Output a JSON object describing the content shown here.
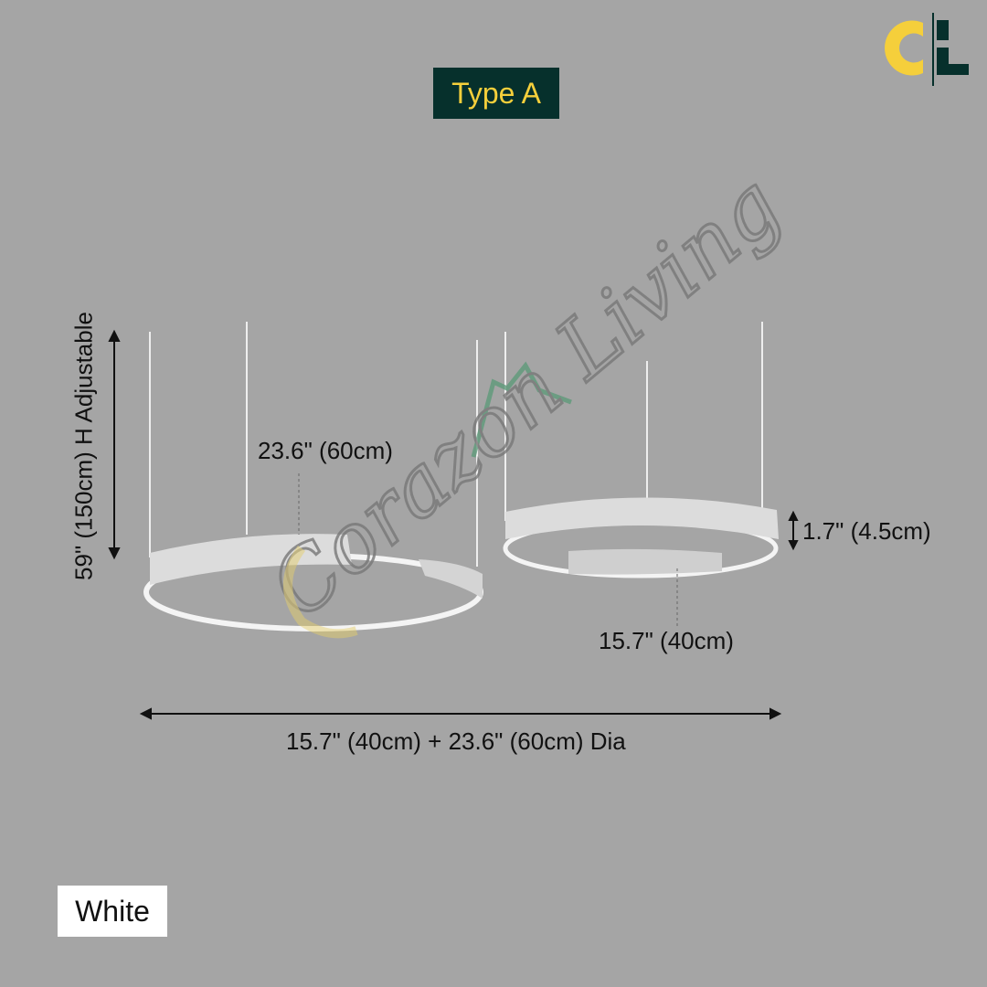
{
  "brand": {
    "logo_text": "Coràzon Living",
    "watermark_text": "Corazon Living",
    "colors": {
      "yellow": "#f5cf3b",
      "dark": "#06302c"
    }
  },
  "type_badge": "Type A",
  "dimensions": {
    "height": "59\" (150cm) H Adjustable",
    "large_ring": "23.6\" (60cm)",
    "ring_thickness": "1.7\" (4.5cm)",
    "small_ring": "15.7\" (40cm)",
    "total_width": "15.7\" (40cm) + 23.6\" (60cm) Dia"
  },
  "color_option": "White",
  "background_color": "#a5a5a5"
}
